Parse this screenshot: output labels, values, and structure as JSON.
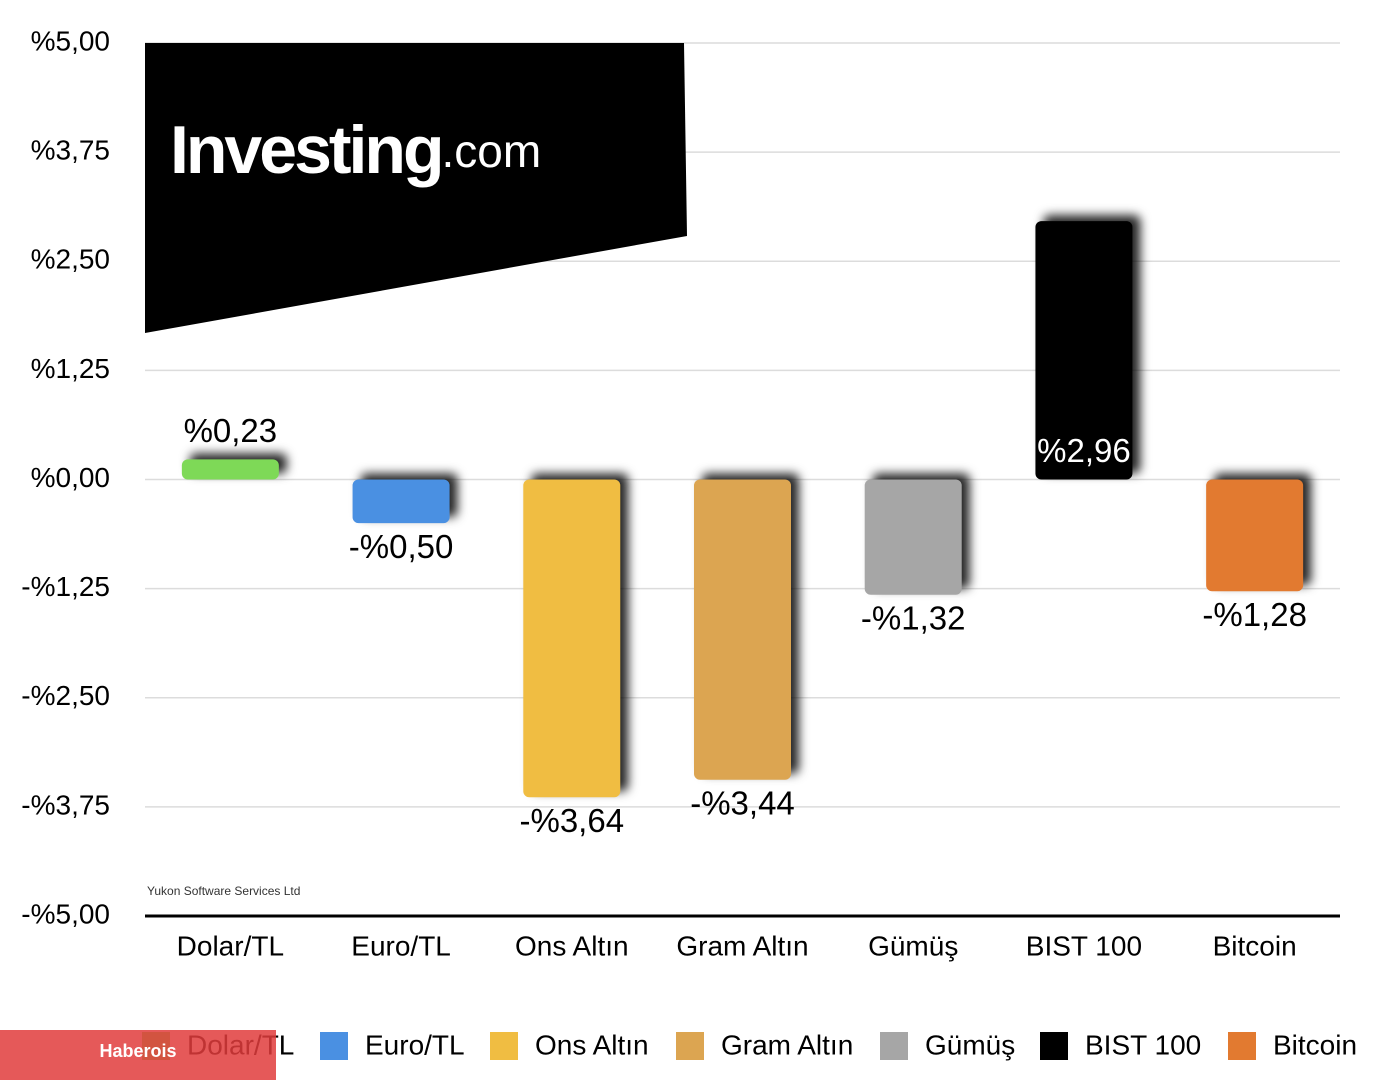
{
  "chart_data": {
    "type": "bar",
    "categories": [
      "Dolar/TL",
      "Euro/TL",
      "Ons Altın",
      "Gram Altın",
      "Gümüş",
      "BIST 100",
      "Bitcoin"
    ],
    "values": [
      0.23,
      -0.5,
      -3.64,
      -3.44,
      -1.32,
      2.96,
      -1.28
    ],
    "value_labels": [
      "%0,23",
      "-%0,50",
      "-%3,64",
      "-%3,44",
      "-%1,32",
      "%2,96",
      "-%1,28"
    ],
    "colors": [
      "#7ed957",
      "#4a90e2",
      "#f0bd42",
      "#dca551",
      "#a6a6a6",
      "#000000",
      "#e27a30"
    ],
    "ylim": [
      -5,
      5
    ],
    "yticks": [
      {
        "value": -5,
        "label": "-%5,00"
      },
      {
        "value": -3.75,
        "label": "-%3,75"
      },
      {
        "value": -2.5,
        "label": "-%2,50"
      },
      {
        "value": -1.25,
        "label": "-%1,25"
      },
      {
        "value": 0,
        "label": "%0,00"
      },
      {
        "value": 1.25,
        "label": "%1,25"
      },
      {
        "value": 2.5,
        "label": "%2,50"
      },
      {
        "value": 3.75,
        "label": "%3,75"
      },
      {
        "value": 5,
        "label": "%5,00"
      }
    ],
    "grid": true
  },
  "logo": {
    "name": "Investing",
    "suffix": ".com"
  },
  "credit": "Yukon Software Services Ltd",
  "watermark": "Haberois"
}
